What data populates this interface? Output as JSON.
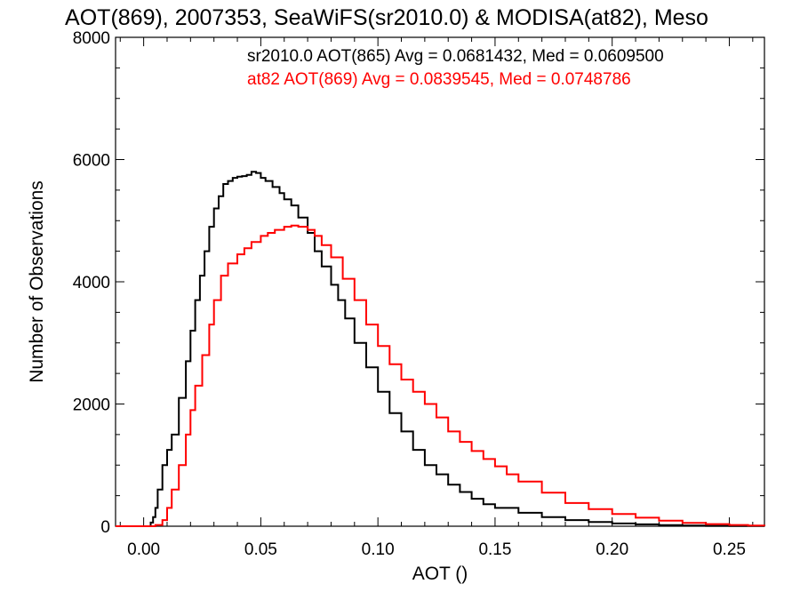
{
  "chart_data": {
    "type": "line",
    "title": "AOT(869), 2007353, SeaWiFS(sr2010.0) & MODISA(at82), Meso",
    "xlabel": "AOT ()",
    "ylabel": "Number of Observations",
    "xlim": [
      -0.012,
      0.265
    ],
    "ylim": [
      0,
      8000
    ],
    "xticks": [
      0.0,
      0.05,
      0.1,
      0.15,
      0.2,
      0.25
    ],
    "xtick_labels": [
      "0.00",
      "0.05",
      "0.10",
      "0.15",
      "0.20",
      "0.25"
    ],
    "yticks": [
      0,
      2000,
      4000,
      6000,
      8000
    ],
    "ytick_labels": [
      "0",
      "2000",
      "4000",
      "6000",
      "8000"
    ],
    "grid": false,
    "series": [
      {
        "name": "sr2010.0",
        "color": "#000000",
        "step": true,
        "x": [
          -0.012,
          0.0,
          0.003,
          0.004,
          0.005,
          0.006,
          0.008,
          0.01,
          0.012,
          0.015,
          0.018,
          0.02,
          0.022,
          0.024,
          0.026,
          0.028,
          0.03,
          0.032,
          0.034,
          0.036,
          0.038,
          0.04,
          0.042,
          0.044,
          0.046,
          0.048,
          0.05,
          0.052,
          0.055,
          0.058,
          0.06,
          0.063,
          0.066,
          0.07,
          0.073,
          0.076,
          0.08,
          0.083,
          0.086,
          0.09,
          0.095,
          0.1,
          0.105,
          0.11,
          0.115,
          0.12,
          0.125,
          0.13,
          0.135,
          0.14,
          0.145,
          0.15,
          0.16,
          0.17,
          0.18,
          0.19,
          0.2,
          0.21,
          0.22,
          0.23,
          0.24,
          0.25,
          0.265
        ],
        "y": [
          0,
          0,
          60,
          150,
          300,
          600,
          1000,
          1250,
          1500,
          2100,
          2700,
          3200,
          3700,
          4100,
          4500,
          4900,
          5200,
          5400,
          5600,
          5650,
          5700,
          5720,
          5730,
          5750,
          5800,
          5780,
          5700,
          5650,
          5550,
          5450,
          5350,
          5250,
          5050,
          4800,
          4500,
          4250,
          3950,
          3700,
          3400,
          3000,
          2600,
          2200,
          1850,
          1550,
          1250,
          1000,
          850,
          680,
          560,
          450,
          360,
          300,
          220,
          150,
          100,
          70,
          45,
          30,
          18,
          10,
          6,
          3,
          0
        ]
      },
      {
        "name": "at82",
        "color": "#ff0000",
        "step": true,
        "x": [
          -0.012,
          0.0,
          0.005,
          0.008,
          0.01,
          0.012,
          0.015,
          0.018,
          0.02,
          0.022,
          0.025,
          0.028,
          0.03,
          0.033,
          0.036,
          0.04,
          0.043,
          0.046,
          0.05,
          0.053,
          0.056,
          0.06,
          0.063,
          0.066,
          0.07,
          0.073,
          0.076,
          0.08,
          0.085,
          0.09,
          0.095,
          0.1,
          0.105,
          0.11,
          0.115,
          0.12,
          0.125,
          0.13,
          0.135,
          0.14,
          0.145,
          0.15,
          0.155,
          0.16,
          0.17,
          0.18,
          0.19,
          0.2,
          0.21,
          0.22,
          0.23,
          0.24,
          0.25,
          0.258,
          0.265
        ],
        "y": [
          0,
          0,
          20,
          100,
          300,
          600,
          1000,
          1500,
          1900,
          2300,
          2800,
          3300,
          3700,
          4100,
          4300,
          4450,
          4550,
          4650,
          4750,
          4800,
          4850,
          4900,
          4920,
          4900,
          4850,
          4750,
          4600,
          4400,
          4050,
          3700,
          3300,
          2950,
          2650,
          2400,
          2200,
          2000,
          1780,
          1550,
          1380,
          1230,
          1100,
          980,
          850,
          730,
          550,
          380,
          280,
          200,
          140,
          90,
          55,
          35,
          20,
          10,
          5
        ]
      }
    ],
    "annotations": [
      {
        "text": "sr2010.0 AOT(865) Avg = 0.0681432, Med = 0.0609500",
        "color": "#000000"
      },
      {
        "text": "at82 AOT(869) Avg = 0.0839545, Med = 0.0748786",
        "color": "#ff0000"
      }
    ]
  }
}
